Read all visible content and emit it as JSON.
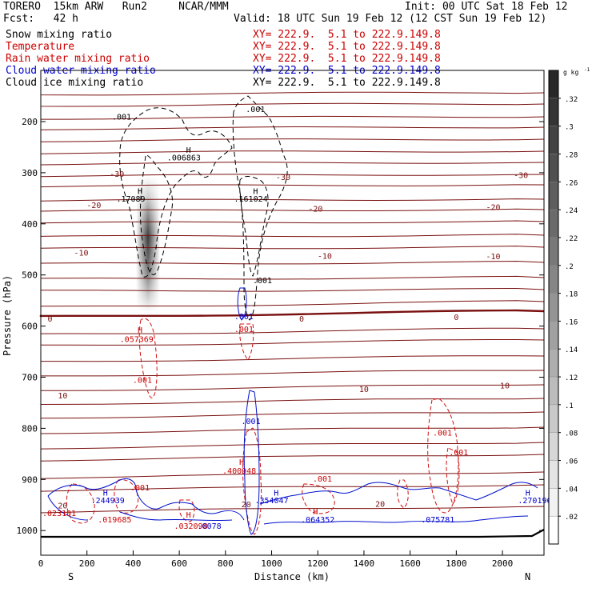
{
  "header": {
    "model": "TORERO  15km ARW   Run2     NCAR/MMM",
    "init": "Init: 00 UTC Sat 18 Feb 12",
    "fcst": "Fcst:   42 h",
    "valid": "Valid: 18 UTC Sun 19 Feb 12 (12 CST Sun 19 Feb 12)"
  },
  "legend": [
    {
      "label": "Snow mixing ratio",
      "xy": "XY= 222.9.  5.1 to 222.9.149.8",
      "color": "#000000",
      "xy_color": "#cc0000"
    },
    {
      "label": "Temperature",
      "xy": "XY= 222.9.  5.1 to 222.9.149.8",
      "color": "#cc0000",
      "xy_color": "#cc0000"
    },
    {
      "label": "Rain water mixing ratio",
      "xy": "XY= 222.9.  5.1 to 222.9.149.8",
      "color": "#cc0000",
      "xy_color": "#cc0000"
    },
    {
      "label": "Cloud water mixing ratio",
      "xy": "XY= 222.9.  5.1 to 222.9.149.8",
      "color": "#0000cc",
      "xy_color": "#0000cc"
    },
    {
      "label": "Cloud ice mixing ratio",
      "xy": "XY= 222.9.  5.1 to 222.9.149.8",
      "color": "#000000",
      "xy_color": "#000000"
    }
  ],
  "chart_data": {
    "type": "contour",
    "xlabel": "Distance (km)",
    "ylabel": "Pressure (hPa)",
    "xlim": [
      0,
      2180
    ],
    "ylim": [
      1050,
      100
    ],
    "x_ticks": [
      0,
      200,
      400,
      600,
      800,
      1000,
      1200,
      1400,
      1600,
      1800,
      2000
    ],
    "y_ticks": [
      200,
      300,
      400,
      500,
      600,
      700,
      800,
      900,
      1000
    ],
    "x_end_labels": {
      "left": "S",
      "right": "N"
    },
    "colorbar": {
      "unit": "g kg",
      "unit_exp": "-1",
      "ticks": [
        ".32",
        ".3",
        ".28",
        ".26",
        ".24",
        ".22",
        ".2",
        ".18",
        ".16",
        ".14",
        ".12",
        ".1",
        ".08",
        ".06",
        ".04",
        ".02"
      ],
      "min": 0,
      "max": 0.34
    },
    "temperature_isotherm_labels": [
      {
        "value": "-30",
        "x": 330,
        "p": 302,
        "side": "left"
      },
      {
        "value": "-30",
        "x": 1050,
        "p": 308,
        "side": "mid"
      },
      {
        "value": "-30",
        "x": 2080,
        "p": 304,
        "side": "right"
      },
      {
        "value": "-20",
        "x": 230,
        "p": 363,
        "side": "left"
      },
      {
        "value": "-20",
        "x": 1190,
        "p": 370,
        "side": "mid"
      },
      {
        "value": "-20",
        "x": 1960,
        "p": 367,
        "side": "right"
      },
      {
        "value": "-10",
        "x": 175,
        "p": 456,
        "side": "left"
      },
      {
        "value": "-10",
        "x": 1230,
        "p": 462,
        "side": "mid"
      },
      {
        "value": "-10",
        "x": 1960,
        "p": 463,
        "side": "right"
      },
      {
        "value": "0",
        "x": 40,
        "p": 585,
        "side": "left"
      },
      {
        "value": "0",
        "x": 1130,
        "p": 585,
        "side": "mid"
      },
      {
        "value": "0",
        "x": 1800,
        "p": 582,
        "side": "right"
      },
      {
        "value": "10",
        "x": 95,
        "p": 735,
        "side": "left"
      },
      {
        "value": "10",
        "x": 1400,
        "p": 723,
        "side": "mid"
      },
      {
        "value": "10",
        "x": 2010,
        "p": 716,
        "side": "right"
      },
      {
        "value": "20",
        "x": 95,
        "p": 950,
        "side": "left"
      },
      {
        "value": "20",
        "x": 890,
        "p": 948,
        "side": "mid"
      },
      {
        "value": "20",
        "x": 1470,
        "p": 947,
        "side": "right"
      }
    ],
    "annotations": [
      {
        "text": ".001",
        "x": 350,
        "p": 190,
        "color": "#000000"
      },
      {
        "text": "H",
        "x": 640,
        "p": 255,
        "color": "#000000"
      },
      {
        "text": ".006863",
        "x": 620,
        "p": 270,
        "color": "#000000"
      },
      {
        "text": ".001",
        "x": 930,
        "p": 175,
        "color": "#000000"
      },
      {
        "text": "H",
        "x": 430,
        "p": 335,
        "color": "#000000"
      },
      {
        "text": ".17089",
        "x": 390,
        "p": 350,
        "color": "#000000"
      },
      {
        "text": "H",
        "x": 930,
        "p": 335,
        "color": "#000000"
      },
      {
        "text": ".161024",
        "x": 910,
        "p": 350,
        "color": "#000000"
      },
      {
        "text": ".001",
        "x": 960,
        "p": 510,
        "color": "#000000"
      },
      {
        "text": ".001",
        "x": 880,
        "p": 580,
        "color": "#0000cc"
      },
      {
        "text": ".001",
        "x": 880,
        "p": 605,
        "color": "#cc0000"
      },
      {
        "text": "H",
        "x": 430,
        "p": 607,
        "color": "#cc0000"
      },
      {
        "text": ".057369",
        "x": 415,
        "p": 625,
        "color": "#cc0000"
      },
      {
        "text": ".001",
        "x": 440,
        "p": 705,
        "color": "#cc0000"
      },
      {
        "text": ".001",
        "x": 910,
        "p": 785,
        "color": "#0000cc"
      },
      {
        "text": ".001",
        "x": 1740,
        "p": 808,
        "color": "#cc0000"
      },
      {
        "text": ".001",
        "x": 1810,
        "p": 846,
        "color": "#cc0000"
      },
      {
        "text": "H",
        "x": 870,
        "p": 865,
        "color": "#cc0000"
      },
      {
        "text": ".400948",
        "x": 860,
        "p": 882,
        "color": "#cc0000"
      },
      {
        "text": ".001",
        "x": 1220,
        "p": 898,
        "color": "#cc0000"
      },
      {
        "text": ".001",
        "x": 430,
        "p": 915,
        "color": "#cc0000"
      },
      {
        "text": "H",
        "x": 280,
        "p": 925,
        "color": "#0000cc"
      },
      {
        "text": ".244939",
        "x": 290,
        "p": 940,
        "color": "#0000cc"
      },
      {
        "text": ".023101",
        "x": 80,
        "p": 965,
        "color": "#cc0000"
      },
      {
        "text": ".019685",
        "x": 320,
        "p": 978,
        "color": "#cc0000"
      },
      {
        "text": "H",
        "x": 640,
        "p": 968,
        "color": "#cc0000"
      },
      {
        "text": ".032098",
        "x": 650,
        "p": 990,
        "color": "#cc0000"
      },
      {
        "text": ".0078",
        "x": 730,
        "p": 990,
        "color": "#0000cc"
      },
      {
        "text": "H",
        "x": 1020,
        "p": 925,
        "color": "#0000cc"
      },
      {
        "text": ".354047",
        "x": 1000,
        "p": 940,
        "color": "#0000cc"
      },
      {
        "text": "H",
        "x": 1190,
        "p": 962,
        "color": "#cc0000"
      },
      {
        "text": ".064352",
        "x": 1200,
        "p": 978,
        "color": "#0000cc"
      },
      {
        "text": ".075781",
        "x": 1720,
        "p": 978,
        "color": "#0000cc"
      },
      {
        "text": "H",
        "x": 2110,
        "p": 925,
        "color": "#0000cc"
      },
      {
        "text": ".270196",
        "x": 2140,
        "p": 940,
        "color": "#0000cc"
      }
    ]
  }
}
